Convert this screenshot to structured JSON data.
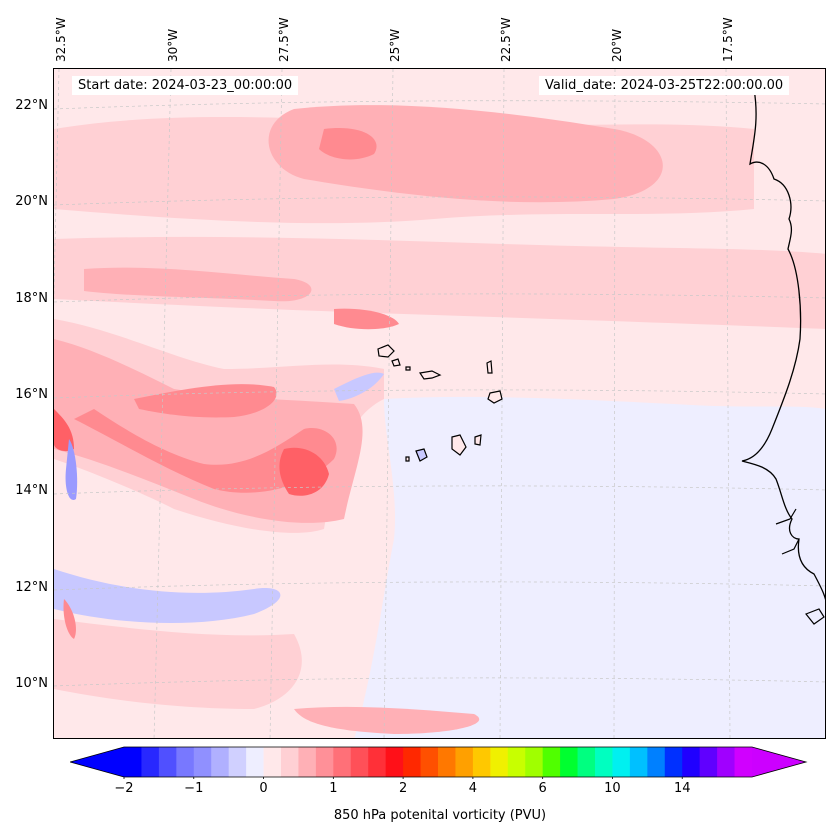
{
  "map": {
    "start_date_text": "Start date: 2024-03-23_00:00:00",
    "valid_date_text": "Valid_date: 2024-03-25T22:00:00.00",
    "longitude_labels": [
      "32.5°W",
      "30°W",
      "27.5°W",
      "25°W",
      "22.5°W",
      "20°W",
      "17.5°W"
    ],
    "latitude_labels": [
      "22°N",
      "20°N",
      "18°N",
      "16°N",
      "14°N",
      "12°N",
      "10°N"
    ],
    "field_colors": {
      "background": "#ffe8ea",
      "light_pink": "#ffd0d4",
      "pink": "#ffb0b6",
      "salmon": "#ff8a90",
      "red": "#ff6066",
      "light_blue": "#eeeeff",
      "blue": "#c8c8ff",
      "mid_blue": "#9a9aff"
    },
    "features": [
      "cape-verde-islands",
      "west-africa-coastline"
    ]
  },
  "colorbar": {
    "label": "850 hPa potenital vorticity (PVU)",
    "tick_labels": [
      "−2",
      "−1",
      "0",
      "1",
      "2",
      "4",
      "6",
      "10",
      "14"
    ],
    "colors": [
      "#0000ff",
      "#2828ff",
      "#5050ff",
      "#7878ff",
      "#9090ff",
      "#b0b0ff",
      "#d0d0ff",
      "#eeeeff",
      "#ffe8ea",
      "#ffd0d4",
      "#ffb0b6",
      "#ff9098",
      "#ff7078",
      "#ff5058",
      "#ff3038",
      "#ff1018",
      "#ff2800",
      "#ff5000",
      "#ff7800",
      "#ffa000",
      "#ffc800",
      "#f0f000",
      "#c8ff00",
      "#a0ff00",
      "#50ff00",
      "#00ff30",
      "#00ff80",
      "#00ffc0",
      "#00f0f0",
      "#00c0ff",
      "#0080ff",
      "#0030ff",
      "#2000ff",
      "#6000ff",
      "#a000ff",
      "#d000ff"
    ],
    "tick_positions_index": [
      0,
      4,
      8,
      12,
      16,
      20,
      24,
      28,
      32
    ],
    "extend": "both",
    "arrow_colors": {
      "left": "#0000ff",
      "right": "#cc00ff"
    }
  }
}
